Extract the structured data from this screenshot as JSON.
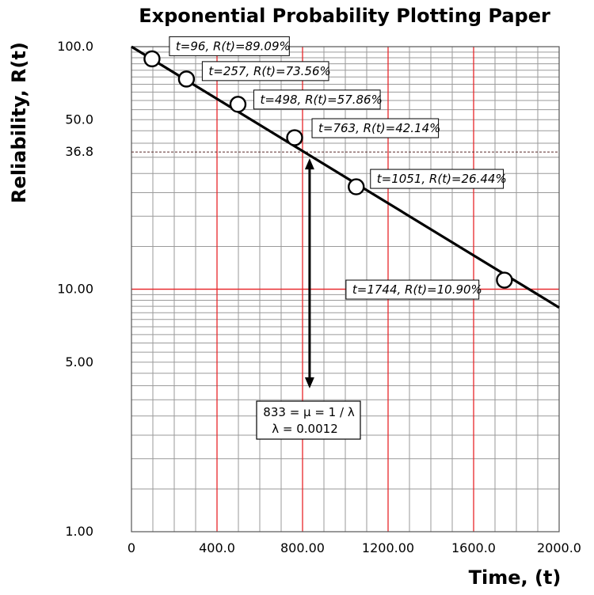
{
  "chart_data": {
    "type": "scatter",
    "title": "Exponential Probability Plotting Paper",
    "xlabel": "Time, (t)",
    "ylabel": "Reliability, R(t)",
    "xlim": [
      0,
      2000
    ],
    "ylim": [
      1,
      100
    ],
    "yscale": "log",
    "grid": true,
    "x_ticks": [
      {
        "value": 0,
        "label": "0"
      },
      {
        "value": 400,
        "label": "400.0"
      },
      {
        "value": 800,
        "label": "800.00"
      },
      {
        "value": 1200,
        "label": "1200.00"
      },
      {
        "value": 1600,
        "label": "1600.0"
      },
      {
        "value": 2000,
        "label": "2000.0"
      }
    ],
    "y_ticks": [
      {
        "value": 100,
        "label": "100.0"
      },
      {
        "value": 50,
        "label": "50.0"
      },
      {
        "value": 36.8,
        "label": "36.8"
      },
      {
        "value": 10,
        "label": "10.00"
      },
      {
        "value": 5,
        "label": "5.00"
      },
      {
        "value": 1,
        "label": "1.00"
      }
    ],
    "points": [
      {
        "t": 96,
        "R": 89.09,
        "label": "t=96, R(t)=89.09%"
      },
      {
        "t": 257,
        "R": 73.56,
        "label": "t=257, R(t)=73.56%"
      },
      {
        "t": 498,
        "R": 57.86,
        "label": "t=498, R(t)=57.86%"
      },
      {
        "t": 763,
        "R": 42.14,
        "label": "t=763, R(t)=42.14%"
      },
      {
        "t": 1051,
        "R": 26.44,
        "label": "t=1051, R(t)=26.44%"
      },
      {
        "t": 1744,
        "R": 10.9,
        "label": "t=1744, R(t)=10.90%"
      }
    ],
    "fit_line": {
      "t": [
        0,
        2000
      ],
      "R": [
        100,
        8.4
      ]
    },
    "reference_level": 36.8,
    "mean_marker": {
      "t": 833,
      "R_top": 36.8,
      "R_bottom": 3.9
    },
    "note_lines": [
      "833 = μ = 1 / λ",
      "λ = 0.0012"
    ]
  }
}
